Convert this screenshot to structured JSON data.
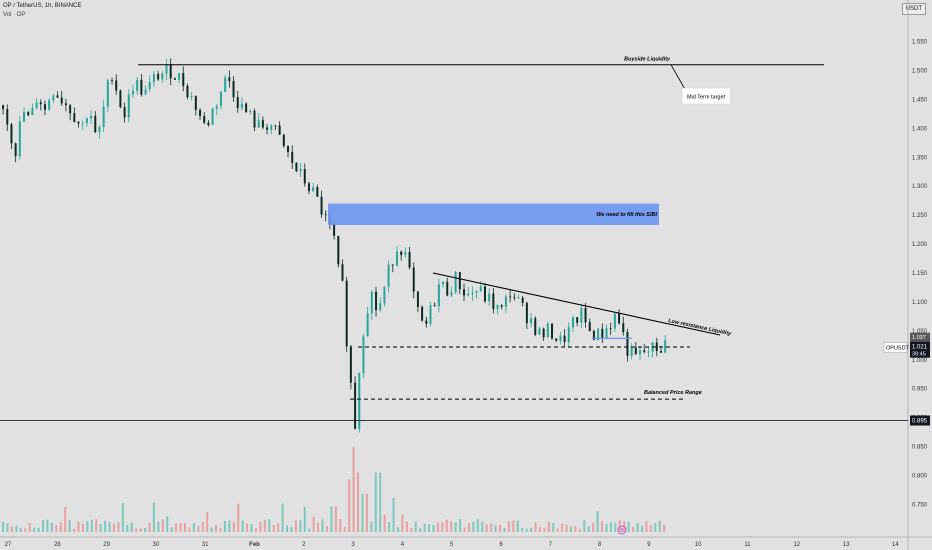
{
  "header": {
    "symbol_line": "OP / TetherUS, 1h, BINANCE",
    "volume_line": "Vol · OP"
  },
  "currency_badge": "USDT",
  "chart_data": {
    "type": "candlestick",
    "title": "OP / TetherUS, 1h, BINANCE",
    "xlabel": "",
    "ylabel": "",
    "ylim": [
      0.735,
      1.62
    ],
    "y_ticks": [
      "1.550",
      "1.500",
      "1.450",
      "1.400",
      "1.350",
      "1.300",
      "1.250",
      "1.200",
      "1.150",
      "1.100",
      "1.050",
      "1.000",
      "0.950",
      "0.900",
      "0.850",
      "0.800",
      "0.750"
    ],
    "x_ticks": [
      "27",
      "28",
      "29",
      "30",
      "31",
      "Feb",
      "2",
      "3",
      "4",
      "5",
      "6",
      "7",
      "8",
      "9",
      "10",
      "11",
      "12",
      "13",
      "14"
    ],
    "grid": false,
    "price_path": [
      [
        26.9,
        1.44
      ],
      [
        27.15,
        1.36
      ],
      [
        27.3,
        1.43
      ],
      [
        27.45,
        1.41
      ],
      [
        27.6,
        1.46
      ],
      [
        27.75,
        1.43
      ],
      [
        27.9,
        1.47
      ],
      [
        28.1,
        1.45
      ],
      [
        28.3,
        1.43
      ],
      [
        28.5,
        1.4
      ],
      [
        28.65,
        1.44
      ],
      [
        28.8,
        1.37
      ],
      [
        29.0,
        1.46
      ],
      [
        29.1,
        1.5
      ],
      [
        29.35,
        1.42
      ],
      [
        29.55,
        1.48
      ],
      [
        29.8,
        1.46
      ],
      [
        30.0,
        1.49
      ],
      [
        30.3,
        1.5
      ],
      [
        30.55,
        1.48
      ],
      [
        30.8,
        1.44
      ],
      [
        31.0,
        1.4
      ],
      [
        31.2,
        1.44
      ],
      [
        31.45,
        1.49
      ],
      [
        31.7,
        1.44
      ],
      [
        31.9,
        1.42
      ],
      [
        32.1,
        1.4
      ],
      [
        32.3,
        1.41
      ],
      [
        32.5,
        1.38
      ],
      [
        32.7,
        1.35
      ],
      [
        32.9,
        1.32
      ],
      [
        33.1,
        1.3
      ],
      [
        33.3,
        1.27
      ],
      [
        33.45,
        1.24
      ],
      [
        33.6,
        1.21
      ],
      [
        33.7,
        1.18
      ],
      [
        33.82,
        1.1
      ],
      [
        33.9,
        1.0
      ],
      [
        34.0,
        0.92
      ],
      [
        34.05,
        0.88
      ],
      [
        34.12,
        0.98
      ],
      [
        34.2,
        1.05
      ],
      [
        34.35,
        1.12
      ],
      [
        34.5,
        1.08
      ],
      [
        34.75,
        1.16
      ],
      [
        34.85,
        1.19
      ],
      [
        34.95,
        1.2
      ],
      [
        35.1,
        1.17
      ],
      [
        35.2,
        1.12
      ],
      [
        35.3,
        1.08
      ],
      [
        35.45,
        1.05
      ],
      [
        35.6,
        1.09
      ],
      [
        35.75,
        1.13
      ],
      [
        35.9,
        1.12
      ],
      [
        36.1,
        1.14
      ],
      [
        36.3,
        1.11
      ],
      [
        36.5,
        1.12
      ],
      [
        36.8,
        1.1
      ],
      [
        37.0,
        1.08
      ],
      [
        37.2,
        1.12
      ],
      [
        37.4,
        1.09
      ],
      [
        37.6,
        1.07
      ],
      [
        37.8,
        1.04
      ],
      [
        38.0,
        1.05
      ],
      [
        38.2,
        1.03
      ],
      [
        38.4,
        1.05
      ],
      [
        38.6,
        1.08
      ],
      [
        38.8,
        1.05
      ],
      [
        39.0,
        1.04
      ],
      [
        39.2,
        1.06
      ],
      [
        39.35,
        1.08
      ],
      [
        39.45,
        1.05
      ],
      [
        39.55,
        1.02
      ],
      [
        39.7,
        1.0
      ],
      [
        39.85,
        1.01
      ],
      [
        40.0,
        1.015
      ],
      [
        40.2,
        1.02
      ],
      [
        40.35,
        1.025
      ]
    ],
    "volume_spikes": [
      [
        33.9,
        0.62
      ],
      [
        34.0,
        1.0
      ],
      [
        34.1,
        0.7
      ],
      [
        34.25,
        0.45
      ],
      [
        34.5,
        0.7
      ],
      [
        34.8,
        0.4
      ],
      [
        33.6,
        0.3
      ],
      [
        34.65,
        0.2
      ],
      [
        35.0,
        0.2
      ],
      [
        28.8,
        0.15
      ],
      [
        31.6,
        0.12
      ],
      [
        33.2,
        0.18
      ]
    ],
    "last_price_label": "OPUSDT",
    "last_price": "1.021",
    "last_price_countdown": "39:45",
    "level_above_price": "1.037",
    "horizontal_line_price": "0.895",
    "annotations": {
      "buyside_liquidity": {
        "text": "Buyside Liquidity",
        "price": 1.51
      },
      "mid_term_target": {
        "text": "Mid Term target"
      },
      "sibi_zone": {
        "text": "We need to fill this SIBI",
        "top": 1.27,
        "bottom": 1.233
      },
      "low_resistance_liquidity": {
        "text": "Low resistance Liquidity"
      },
      "balanced_price_range": {
        "text": "Balanced Price Range",
        "upper": 1.022,
        "lower": 0.932
      },
      "horizontal_line_price": 0.895
    },
    "colors": {
      "background": "#e1e1e1",
      "up_candle": "#26a69a",
      "down_candle": "#0d2b22",
      "volume_up": "#7dc8be",
      "volume_down": "#e8a0a0",
      "sibi_fill": "#6e97f2",
      "trend_line": "#000000",
      "target_box": "#ffffff"
    },
    "event_badge_glyph": "9"
  }
}
